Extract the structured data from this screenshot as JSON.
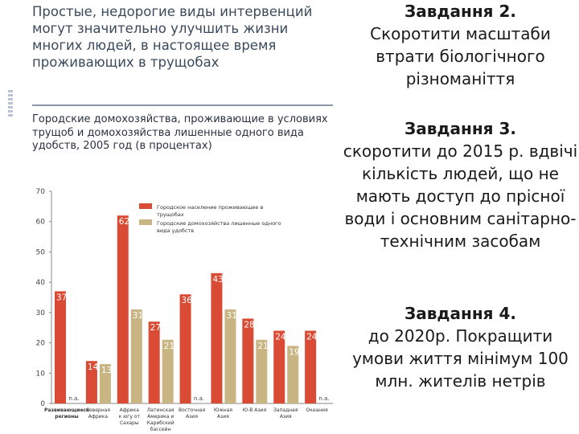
{
  "left_panel": {
    "title": "Простые, недорогие виды интервенций могут значительно улучшить жизни многих людей, в настоящее время проживающих в трущобах",
    "subtitle": "Городские домохозяйства, проживающие в условиях трущоб и домохозяйства лишенные одного вида удобств, 2005 год (в процентах)"
  },
  "chart_data": {
    "type": "bar",
    "ylim": [
      0,
      70
    ],
    "yticks": [
      0,
      10,
      20,
      30,
      40,
      50,
      60,
      70
    ],
    "categories": [
      [
        "Развивающиеся",
        "регионы"
      ],
      [
        "Северная",
        "Африка"
      ],
      [
        "Африка",
        "к югу от",
        "Сахары"
      ],
      [
        "Латинская",
        "Америка и",
        "Карибский",
        "бассейн"
      ],
      [
        "Восточная",
        "Азия"
      ],
      [
        "Южная",
        "Азия"
      ],
      [
        "Ю-В Азия"
      ],
      [
        "Западная",
        "Азия"
      ],
      [
        "Океания"
      ]
    ],
    "series": [
      {
        "name": "Городское население проживающее в трущобах",
        "color": "#d94b34",
        "values": [
          37,
          14,
          62,
          27,
          36,
          43,
          28,
          24,
          24
        ]
      },
      {
        "name": "Городские домохозяйства лишенные одного вида удобств",
        "color": "#c9b483",
        "values": [
          null,
          13,
          31,
          21,
          null,
          31,
          21,
          19,
          null
        ]
      }
    ],
    "missing_label": "n.a.",
    "legend_position": "top-right"
  },
  "right_panel": {
    "task2": {
      "heading": "Завдання 2.",
      "text": "Скоротити масштаби втрати біологічного різноманіття"
    },
    "task3": {
      "heading": "Завдання 3.",
      "text": "скоротити до 2015 р. вдвічі кількість людей, що не мають доступ до прісної води і основним санітарно-технічним засобам"
    },
    "task4": {
      "heading": "Завдання 4.",
      "text": "до 2020р. Покращити умови життя мінімум 100 млн. жителів нетрів"
    }
  }
}
